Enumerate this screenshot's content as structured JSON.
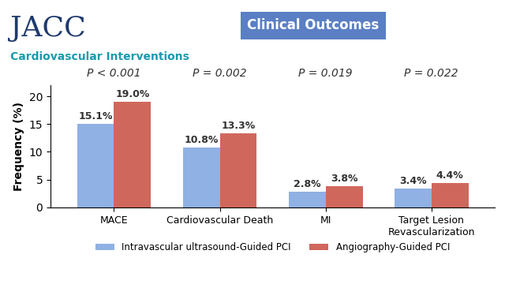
{
  "chart_data": {
    "type": "bar",
    "title": "Clinical Outcomes",
    "y_label": "Frequency (%)",
    "annotations": [
      "JACC",
      "Cardiovascular Interventions"
    ],
    "categories": [
      "MACE",
      "Cardiovascular Death",
      "MI",
      "Target Lesion Revascularization"
    ],
    "p_values": [
      "P < 0.001",
      "P = 0.002",
      "P = 0.019",
      "P = 0.022"
    ],
    "series": [
      {
        "name": "Intravascular ultrasound-Guided PCI",
        "color": "#8fb1e3",
        "values": [
          15.1,
          10.8,
          2.8,
          3.4
        ],
        "value_labels": [
          "15.1%",
          "10.8%",
          "2.8%",
          "3.4%"
        ]
      },
      {
        "name": "Angiography-Guided PCI",
        "color": "#d0675c",
        "values": [
          19.0,
          13.3,
          3.8,
          4.4
        ],
        "value_labels": [
          "19.0%",
          "13.3%",
          "3.8%",
          "4.4%"
        ]
      }
    ],
    "ylim": [
      0,
      22
    ],
    "yticks": [
      0,
      5,
      10,
      15,
      20
    ],
    "data_labels": true,
    "legend": "upper center"
  }
}
